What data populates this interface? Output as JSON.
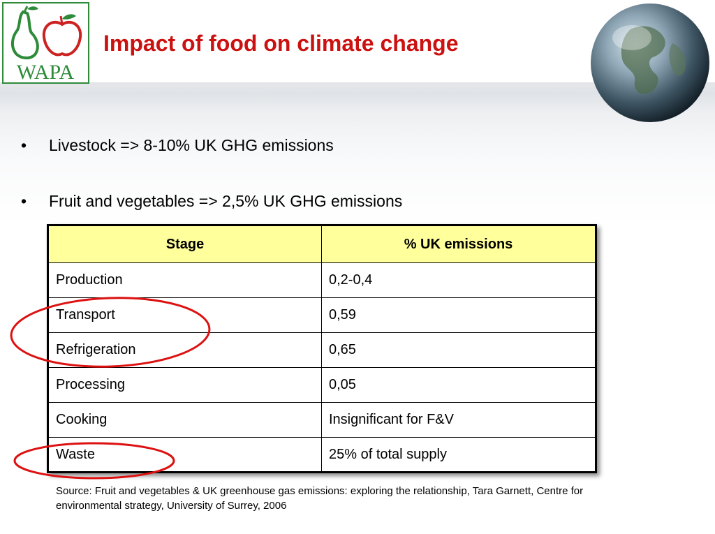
{
  "logo": {
    "text": "WAPA",
    "icon": "pear-apple-logo-icon",
    "color": "#2e8b3a",
    "accent": "#cc2222"
  },
  "slide": {
    "title": "Impact of food on climate change",
    "title_color": "#cc1111",
    "bullets": [
      "Livestock => 8-10% UK GHG emissions",
      "Fruit and vegetables => 2,5% UK GHG emissions"
    ]
  },
  "table": {
    "headers": [
      "Stage",
      "% UK emissions"
    ],
    "header_color": "#ffff9c",
    "rows": [
      [
        "Production",
        "0,2-0,4"
      ],
      [
        "Transport",
        "0,59"
      ],
      [
        "Refrigeration",
        "0,65"
      ],
      [
        "Processing",
        "0,05"
      ],
      [
        "Cooking",
        "Insignificant for F&V"
      ],
      [
        "Waste",
        "25% of total supply"
      ]
    ]
  },
  "source": "Source: Fruit and vegetables & UK greenhouse gas emissions: exploring the relationship, Tara Garnett, Centre for environmental strategy, University of Surrey, 2006",
  "annotations": {
    "ring_color": "#dd1111",
    "ring_icon": "red-ellipse-annotation"
  },
  "decor": {
    "globe_icon": "earth-globe-icon"
  }
}
